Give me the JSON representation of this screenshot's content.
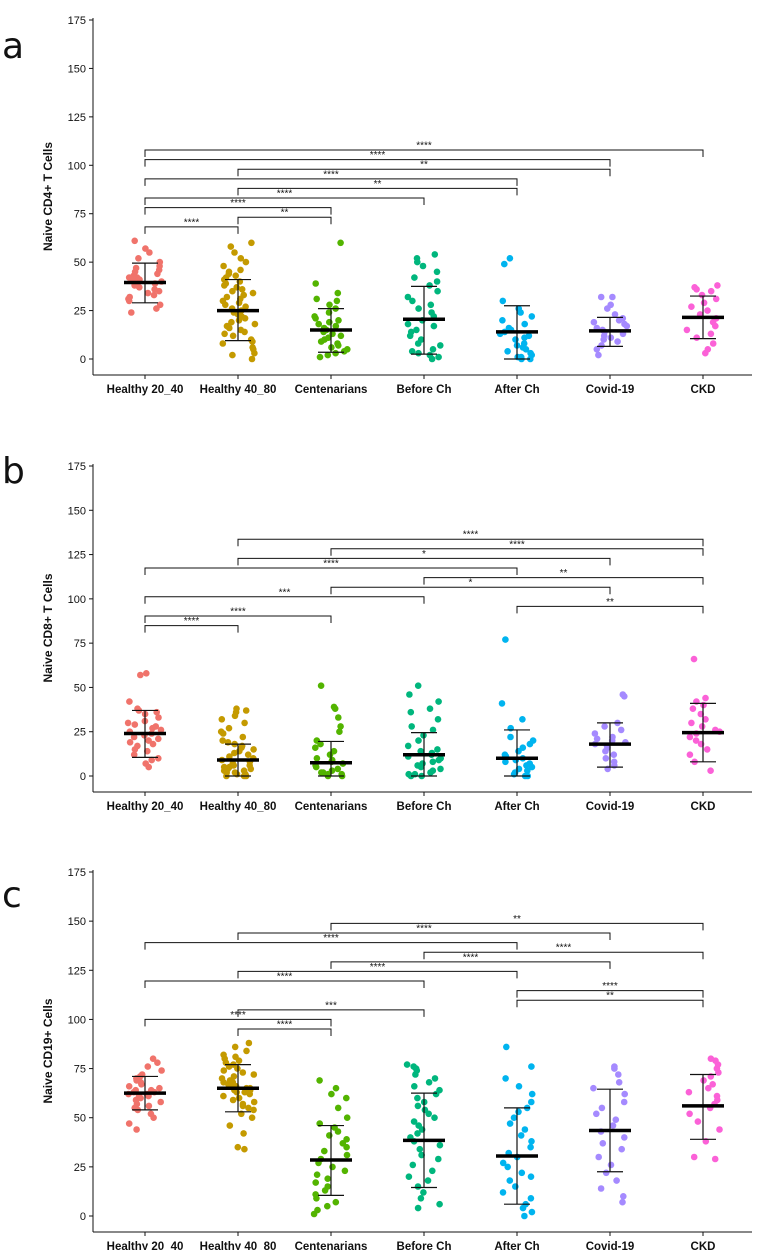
{
  "colors": {
    "Healthy 20_40": "#f0736b",
    "Healthy 40_80": "#c49a00",
    "Centenarians": "#53b400",
    "Before Ch": "#00b67d",
    "After Ch": "#00b4ef",
    "Covid-19": "#a58aff",
    "CKD": "#fb61d7"
  },
  "chart_data": [
    {
      "panel": "a",
      "type": "scatter",
      "ylabel": "Naive CD4+ T Cells",
      "ylim": [
        0,
        175
      ],
      "yticks": [
        0,
        25,
        50,
        75,
        100,
        125,
        150,
        175
      ],
      "categories": [
        "Healthy 20_40",
        "Healthy 40_80",
        "Centenarians",
        "Before Ch",
        "After Ch",
        "Covid-19",
        "CKD"
      ],
      "summary": [
        {
          "mean": 39.5,
          "lo": 29,
          "hi": 49.5
        },
        {
          "mean": 25,
          "lo": 9.5,
          "hi": 41
        },
        {
          "mean": 15,
          "lo": 3.5,
          "hi": 26
        },
        {
          "mean": 20.5,
          "lo": 2.5,
          "hi": 37.5
        },
        {
          "mean": 14,
          "lo": 0,
          "hi": 27.5
        },
        {
          "mean": 14.5,
          "lo": 6.5,
          "hi": 21.5
        },
        {
          "mean": 21.5,
          "lo": 10.5,
          "hi": 32.5
        }
      ],
      "points": [
        [
          24,
          26,
          28,
          30,
          31,
          32,
          33,
          34,
          35,
          36,
          37,
          38,
          38,
          39,
          40,
          40,
          41,
          42,
          42,
          43,
          44,
          45,
          46,
          47,
          48,
          50,
          52,
          55,
          57,
          61
        ],
        [
          0,
          2,
          3,
          5,
          6,
          8,
          9,
          10,
          12,
          13,
          14,
          15,
          16,
          17,
          18,
          19,
          20,
          21,
          22,
          23,
          24,
          25,
          26,
          27,
          28,
          29,
          30,
          31,
          32,
          33,
          34,
          35,
          36,
          37,
          38,
          39,
          40,
          41,
          42,
          43,
          44,
          45,
          46,
          48,
          50,
          52,
          55,
          58,
          60
        ],
        [
          1,
          2,
          3,
          4,
          5,
          6,
          7,
          8,
          9,
          10,
          11,
          12,
          13,
          14,
          15,
          16,
          17,
          18,
          19,
          20,
          21,
          22,
          24,
          26,
          28,
          30,
          31,
          34,
          39,
          60
        ],
        [
          0,
          1,
          2,
          3,
          4,
          5,
          7,
          8,
          10,
          12,
          14,
          15,
          17,
          18,
          20,
          22,
          24,
          26,
          28,
          30,
          32,
          35,
          38,
          40,
          42,
          45,
          48,
          50,
          52,
          54
        ],
        [
          0,
          0,
          1,
          1,
          2,
          3,
          4,
          5,
          6,
          7,
          8,
          10,
          11,
          12,
          13,
          14,
          15,
          16,
          18,
          20,
          22,
          24,
          26,
          30,
          49,
          52
        ],
        [
          2,
          5,
          7,
          9,
          10,
          11,
          12,
          13,
          14,
          15,
          16,
          17,
          18,
          19,
          20,
          21,
          23,
          26,
          28,
          32,
          32
        ],
        [
          3,
          5,
          8,
          11,
          13,
          15,
          17,
          19,
          21,
          23,
          25,
          27,
          29,
          31,
          33,
          35,
          36,
          37,
          38
        ]
      ],
      "brackets": [
        {
          "from": 0,
          "to": 1,
          "label": "****"
        },
        {
          "from": 0,
          "to": 2,
          "label": "****"
        },
        {
          "from": 0,
          "to": 3,
          "label": "****"
        },
        {
          "from": 0,
          "to": 4,
          "label": "****"
        },
        {
          "from": 0,
          "to": 5,
          "label": "****"
        },
        {
          "from": 0,
          "to": 6,
          "label": "****"
        },
        {
          "from": 1,
          "to": 2,
          "label": "**"
        },
        {
          "from": 1,
          "to": 4,
          "label": "**"
        },
        {
          "from": 1,
          "to": 5,
          "label": "**"
        }
      ]
    },
    {
      "panel": "b",
      "type": "scatter",
      "ylabel": "Naive CD8+ T Cells",
      "ylim": [
        0,
        175
      ],
      "yticks": [
        0,
        25,
        50,
        75,
        100,
        125,
        150,
        175
      ],
      "categories": [
        "Healthy 20_40",
        "Healthy 40_80",
        "Centenarians",
        "Before Ch",
        "After Ch",
        "Covid-19",
        "CKD"
      ],
      "summary": [
        {
          "mean": 24,
          "lo": 10.5,
          "hi": 37
        },
        {
          "mean": 9,
          "lo": 0,
          "hi": 18
        },
        {
          "mean": 7.5,
          "lo": 0,
          "hi": 19.5
        },
        {
          "mean": 12,
          "lo": 0,
          "hi": 24.5
        },
        {
          "mean": 10,
          "lo": 0,
          "hi": 26
        },
        {
          "mean": 18,
          "lo": 5,
          "hi": 30
        },
        {
          "mean": 24.5,
          "lo": 8,
          "hi": 41
        }
      ],
      "points": [
        [
          5,
          7,
          9,
          10,
          12,
          14,
          15,
          17,
          18,
          19,
          20,
          21,
          22,
          23,
          24,
          25,
          26,
          27,
          28,
          29,
          30,
          31,
          33,
          35,
          36,
          37,
          38,
          42,
          57,
          58
        ],
        [
          0,
          0,
          0,
          1,
          1,
          2,
          2,
          3,
          3,
          4,
          4,
          5,
          5,
          6,
          6,
          7,
          8,
          9,
          10,
          11,
          12,
          13,
          14,
          15,
          16,
          17,
          18,
          19,
          20,
          22,
          24,
          25,
          27,
          30,
          32,
          34,
          36,
          37,
          38
        ],
        [
          0,
          0,
          1,
          1,
          2,
          2,
          3,
          4,
          5,
          6,
          7,
          8,
          9,
          10,
          12,
          14,
          16,
          18,
          20,
          25,
          28,
          33,
          38,
          39,
          51
        ],
        [
          0,
          0,
          1,
          1,
          2,
          3,
          4,
          5,
          6,
          7,
          8,
          9,
          10,
          11,
          12,
          13,
          14,
          15,
          17,
          20,
          23,
          26,
          28,
          32,
          36,
          38,
          42,
          46,
          51
        ],
        [
          0,
          0,
          1,
          2,
          3,
          4,
          5,
          6,
          7,
          8,
          9,
          10,
          11,
          12,
          14,
          16,
          18,
          20,
          22,
          27,
          32,
          41,
          77
        ],
        [
          4,
          6,
          8,
          10,
          12,
          14,
          16,
          17,
          18,
          19,
          20,
          21,
          22,
          24,
          26,
          28,
          30,
          45,
          46
        ],
        [
          3,
          8,
          12,
          15,
          18,
          20,
          22,
          24,
          25,
          26,
          28,
          30,
          32,
          35,
          38,
          40,
          42,
          44,
          66
        ]
      ],
      "brackets": [
        {
          "from": 0,
          "to": 1,
          "label": "****"
        },
        {
          "from": 0,
          "to": 2,
          "label": "****"
        },
        {
          "from": 0,
          "to": 3,
          "label": "***"
        },
        {
          "from": 0,
          "to": 4,
          "label": "****"
        },
        {
          "from": 1,
          "to": 5,
          "label": "*"
        },
        {
          "from": 1,
          "to": 6,
          "label": "****"
        },
        {
          "from": 2,
          "to": 5,
          "label": "*"
        },
        {
          "from": 2,
          "to": 6,
          "label": "****"
        },
        {
          "from": 3,
          "to": 6,
          "label": "**"
        },
        {
          "from": 4,
          "to": 6,
          "label": "**"
        }
      ]
    },
    {
      "panel": "c",
      "type": "scatter",
      "ylabel": "Naive CD19+ Cells",
      "ylim": [
        0,
        175
      ],
      "yticks": [
        0,
        25,
        50,
        75,
        100,
        125,
        150,
        175
      ],
      "categories": [
        "Healthy 20_40",
        "Healthy 40_80",
        "Centenarians",
        "Before Ch",
        "After Ch",
        "Covid-19",
        "CKD"
      ],
      "summary": [
        {
          "mean": 62.5,
          "lo": 54,
          "hi": 71
        },
        {
          "mean": 65,
          "lo": 53,
          "hi": 77
        },
        {
          "mean": 28.5,
          "lo": 10.5,
          "hi": 46
        },
        {
          "mean": 38.5,
          "lo": 14.5,
          "hi": 62.5
        },
        {
          "mean": 30.5,
          "lo": 6,
          "hi": 55
        },
        {
          "mean": 43.5,
          "lo": 22.5,
          "hi": 64.5
        },
        {
          "mean": 56,
          "lo": 39,
          "hi": 72
        }
      ],
      "points": [
        [
          44,
          47,
          50,
          52,
          54,
          55,
          56,
          57,
          58,
          59,
          60,
          61,
          61,
          62,
          62,
          63,
          63,
          64,
          64,
          65,
          66,
          67,
          68,
          69,
          70,
          71,
          72,
          74,
          76,
          78,
          80
        ],
        [
          34,
          35,
          42,
          46,
          50,
          52,
          54,
          55,
          56,
          57,
          58,
          59,
          60,
          61,
          62,
          63,
          63,
          64,
          64,
          65,
          65,
          66,
          66,
          67,
          67,
          68,
          68,
          69,
          70,
          71,
          72,
          73,
          74,
          75,
          76,
          77,
          78,
          79,
          80,
          81,
          82,
          84,
          86,
          88
        ],
        [
          1,
          3,
          5,
          7,
          9,
          11,
          13,
          15,
          17,
          19,
          21,
          23,
          25,
          27,
          29,
          31,
          33,
          35,
          37,
          39,
          41,
          43,
          45,
          47,
          50,
          55,
          60,
          62,
          65,
          69
        ],
        [
          4,
          6,
          9,
          12,
          15,
          18,
          20,
          23,
          26,
          29,
          31,
          34,
          36,
          38,
          40,
          42,
          44,
          46,
          48,
          50,
          52,
          54,
          56,
          58,
          60,
          62,
          64,
          66,
          68,
          70,
          72,
          74,
          75,
          76,
          77
        ],
        [
          0,
          2,
          4,
          6,
          9,
          12,
          15,
          18,
          20,
          22,
          25,
          27,
          30,
          32,
          35,
          38,
          41,
          44,
          47,
          50,
          53,
          55,
          58,
          62,
          66,
          70,
          76,
          86
        ],
        [
          7,
          10,
          14,
          18,
          22,
          26,
          30,
          34,
          37,
          40,
          43,
          46,
          49,
          52,
          55,
          58,
          62,
          65,
          68,
          72,
          75,
          76
        ],
        [
          29,
          30,
          38,
          44,
          48,
          52,
          55,
          57,
          59,
          61,
          63,
          65,
          67,
          69,
          71,
          73,
          75,
          77,
          79,
          80
        ]
      ],
      "brackets": [
        {
          "from": 0,
          "to": 2,
          "label": "****"
        },
        {
          "from": 0,
          "to": 3,
          "label": "****"
        },
        {
          "from": 0,
          "to": 4,
          "label": "****"
        },
        {
          "from": 1,
          "to": 2,
          "label": "****"
        },
        {
          "from": 1,
          "to": 3,
          "label": "***"
        },
        {
          "from": 1,
          "to": 4,
          "label": "****"
        },
        {
          "from": 1,
          "to": 5,
          "label": "****"
        },
        {
          "from": 2,
          "to": 5,
          "label": "****"
        },
        {
          "from": 2,
          "to": 6,
          "label": "**"
        },
        {
          "from": 3,
          "to": 6,
          "label": "****"
        },
        {
          "from": 4,
          "to": 6,
          "label": "**"
        },
        {
          "from": 4,
          "to": 6,
          "label": "****"
        }
      ]
    }
  ]
}
